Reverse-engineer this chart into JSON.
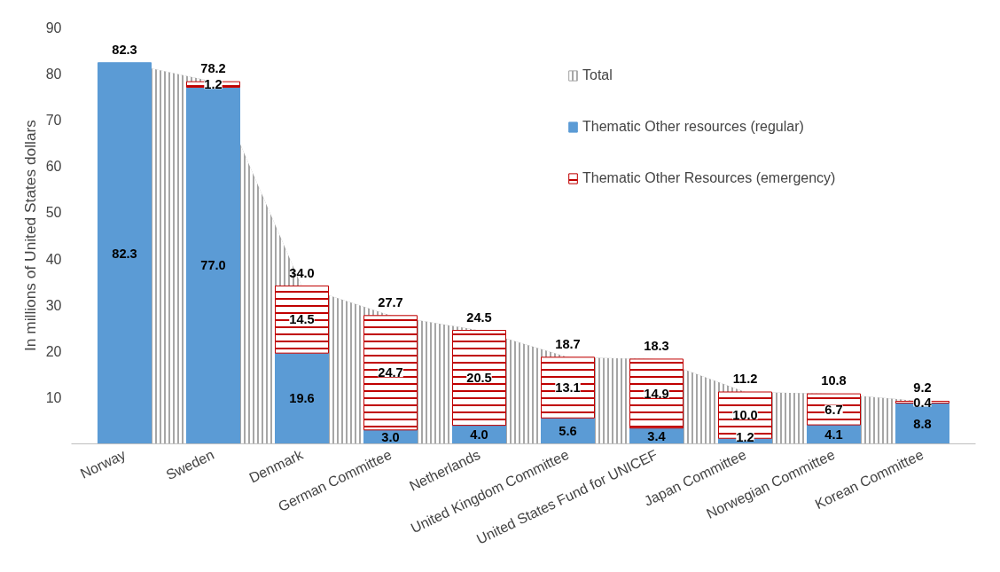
{
  "chart_data": {
    "type": "bar",
    "stacked": true,
    "ylabel": "In millions of United States dollars",
    "categories": [
      "Norway",
      "Sweden",
      "Denmark",
      "German Committee",
      "Netherlands",
      "United Kingdom Committee",
      "United States Fund for UNICEF",
      "Japan Committee",
      "Norwegian Committee",
      "Korean Committee"
    ],
    "series": [
      {
        "name": "Total",
        "type": "area",
        "axis": "y2",
        "color": "#a6a6a6",
        "values": [
          82.3,
          78.2,
          34.0,
          27.7,
          24.5,
          18.7,
          18.3,
          11.2,
          10.8,
          9.2
        ],
        "value_labels": [
          "82.3",
          "78.2",
          "34.0",
          "27.7",
          "24.5",
          "18.7",
          "18.3",
          "11.2",
          "10.8",
          "9.2"
        ]
      },
      {
        "name": "Thematic Other resources (regular)",
        "color": "#5b9bd5",
        "values": [
          82.3,
          77.0,
          19.6,
          3.0,
          4.0,
          5.6,
          3.4,
          1.2,
          4.1,
          8.8
        ],
        "value_labels": [
          "82.3",
          "77.0",
          "19.6",
          "3.0",
          "4.0",
          "5.6",
          "3.4",
          "1.2",
          "4.1",
          "8.8"
        ]
      },
      {
        "name": "Thematic Other Resources (emergency)",
        "color": "#c00000",
        "values": [
          null,
          1.2,
          14.5,
          24.7,
          20.5,
          13.1,
          14.9,
          10.0,
          6.7,
          0.4
        ],
        "value_labels": [
          null,
          "1.2",
          "14.5",
          "24.7",
          "20.5",
          "13.1",
          "14.9",
          "10.0",
          "6.7",
          "0.4"
        ]
      }
    ],
    "ylim": [
      0,
      90
    ],
    "yticks": [
      10,
      20,
      30,
      40,
      50,
      60,
      70,
      80,
      90
    ],
    "grid": false,
    "legend": "top right"
  }
}
